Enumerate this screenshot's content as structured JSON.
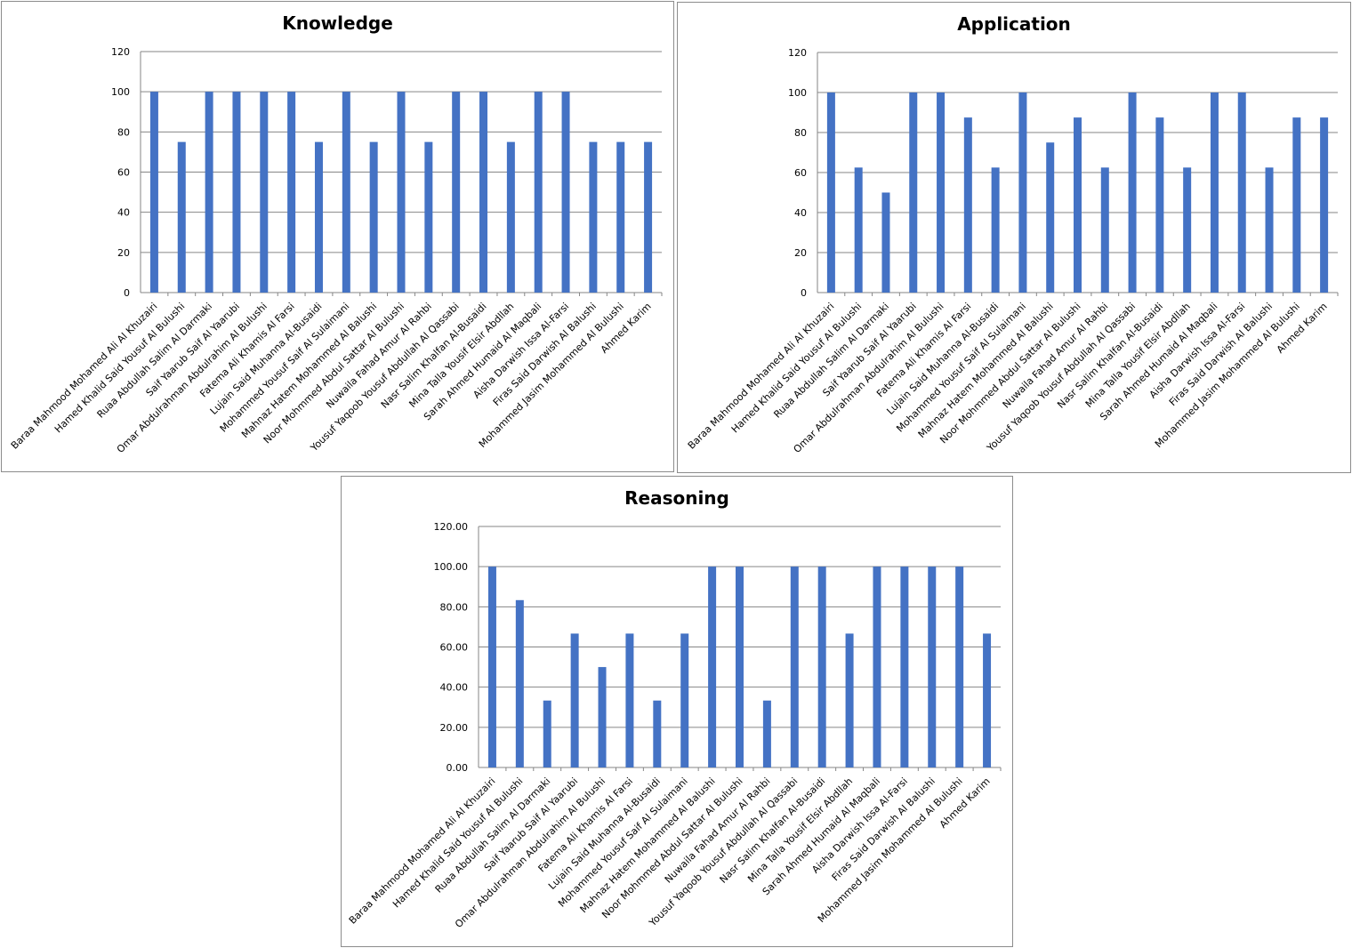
{
  "chart_data": [
    {
      "type": "bar",
      "title": "Knowledge",
      "categories": [
        "Baraa Mahmood  Mohamed Ali Al Khuzairi",
        "Hamed Khalid Said Yousuf Al Bulushi",
        "Ruaa Abdullah Salim Al Darmaki",
        "Saif Yaarub Saif Al Yaarubi",
        "Omar Abdulrahman Abdulrahim Al Bulushi",
        "Fatema Ali Khamis Al Farsi",
        "Lujain Said Muhanna Al-Busaidi",
        "Mohammed Yousuf Saif  Al Sulaimani",
        "Mahnaz Hatem Mohammed Al Balushi",
        "Noor Mohmmed Abdul Sattar  Al Bulushi",
        "Nuwaila Fahad Amur Al Rahbi",
        "Yousuf Yaqoob Yousuf Abdullah Al Qassabi",
        "Nasr Salim Khalfan Al-Busaidi",
        "Mina Talla Yousif Elsir Abdllah",
        "Sarah Ahmed Humaid Al Maqbali",
        "Aisha Darwish Issa Al-Farsi",
        "Firas Said Darwish Al Balushi",
        "Mohammed Jasim Mohammed  Al Bulushi",
        "Ahmed Karim"
      ],
      "values": [
        100,
        75,
        100,
        100,
        100,
        100,
        75,
        100,
        75,
        100,
        75,
        100,
        100,
        75,
        100,
        100,
        75,
        75,
        75
      ],
      "yticks": [
        "0",
        "20",
        "40",
        "60",
        "80",
        "100",
        "120"
      ],
      "ylim": [
        0,
        120
      ],
      "xlabel": "",
      "ylabel": "",
      "grid": true,
      "bar_color": "#4472c4"
    },
    {
      "type": "bar",
      "title": "Application",
      "categories": [
        "Baraa Mahmood  Mohamed Ali Al Khuzairi",
        "Hamed Khalid Said Yousuf Al Bulushi",
        "Ruaa Abdullah Salim Al Darmaki",
        "Saif Yaarub Saif Al Yaarubi",
        "Omar Abdulrahman Abdulrahim Al Bulushi",
        "Fatema Ali Khamis Al Farsi",
        "Lujain Said Muhanna Al-Busaidi",
        "Mohammed Yousuf Saif  Al Sulaimani",
        "Mahnaz Hatem Mohammed Al Balushi",
        "Noor Mohmmed Abdul Sattar  Al Bulushi",
        "Nuwaila Fahad Amur Al Rahbi",
        "Yousuf Yaqoob Yousuf Abdullah Al Qassabi",
        "Nasr Salim Khalfan Al-Busaidi",
        "Mina Talla Yousif Elsir Abdllah",
        "Sarah Ahmed Humaid Al Maqbali",
        "Aisha Darwish Issa Al-Farsi",
        "Firas Said Darwish Al Balushi",
        "Mohammed Jasim Mohammed  Al Bulushi",
        "Ahmed Karim"
      ],
      "values": [
        100,
        62.5,
        50,
        100,
        100,
        87.5,
        62.5,
        100,
        75,
        87.5,
        62.5,
        100,
        87.5,
        62.5,
        100,
        100,
        62.5,
        87.5,
        87.5
      ],
      "yticks": [
        "0",
        "20",
        "40",
        "60",
        "80",
        "100",
        "120"
      ],
      "ylim": [
        0,
        120
      ],
      "xlabel": "",
      "ylabel": "",
      "grid": true,
      "bar_color": "#4472c4"
    },
    {
      "type": "bar",
      "title": "Reasoning",
      "categories": [
        "Baraa Mahmood  Mohamed Ali Al Khuzairi",
        "Hamed Khalid Said Yousuf Al Bulushi",
        "Ruaa Abdullah Salim Al Darmaki",
        "Saif Yaarub Saif Al Yaarubi",
        "Omar Abdulrahman Abdulrahim Al Bulushi",
        "Fatema Ali Khamis Al Farsi",
        "Lujain Said Muhanna Al-Busaidi",
        "Mohammed Yousuf Saif  Al Sulaimani",
        "Mahnaz Hatem Mohammed Al Balushi",
        "Noor Mohmmed Abdul Sattar  Al Bulushi",
        "Nuwaila Fahad Amur Al Rahbi",
        "Yousuf Yaqoob Yousuf Abdullah Al Qassabi",
        "Nasr Salim Khalfan Al-Busaidi",
        "Mina Talla Yousif Elsir Abdllah",
        "Sarah Ahmed Humaid Al Maqbali",
        "Aisha Darwish Issa Al-Farsi",
        "Firas Said Darwish Al Balushi",
        "Mohammed Jasim Mohammed  Al Bulushi",
        "Ahmed Karim"
      ],
      "values": [
        100,
        83.33,
        33.33,
        66.67,
        50,
        66.67,
        33.33,
        66.67,
        100,
        100,
        33.33,
        100,
        100,
        66.67,
        100,
        100,
        100,
        100,
        66.67
      ],
      "yticks": [
        "0.00",
        "20.00",
        "40.00",
        "60.00",
        "80.00",
        "100.00",
        "120.00"
      ],
      "ylim": [
        0,
        120
      ],
      "xlabel": "",
      "ylabel": "",
      "grid": true,
      "bar_color": "#4472c4"
    }
  ]
}
